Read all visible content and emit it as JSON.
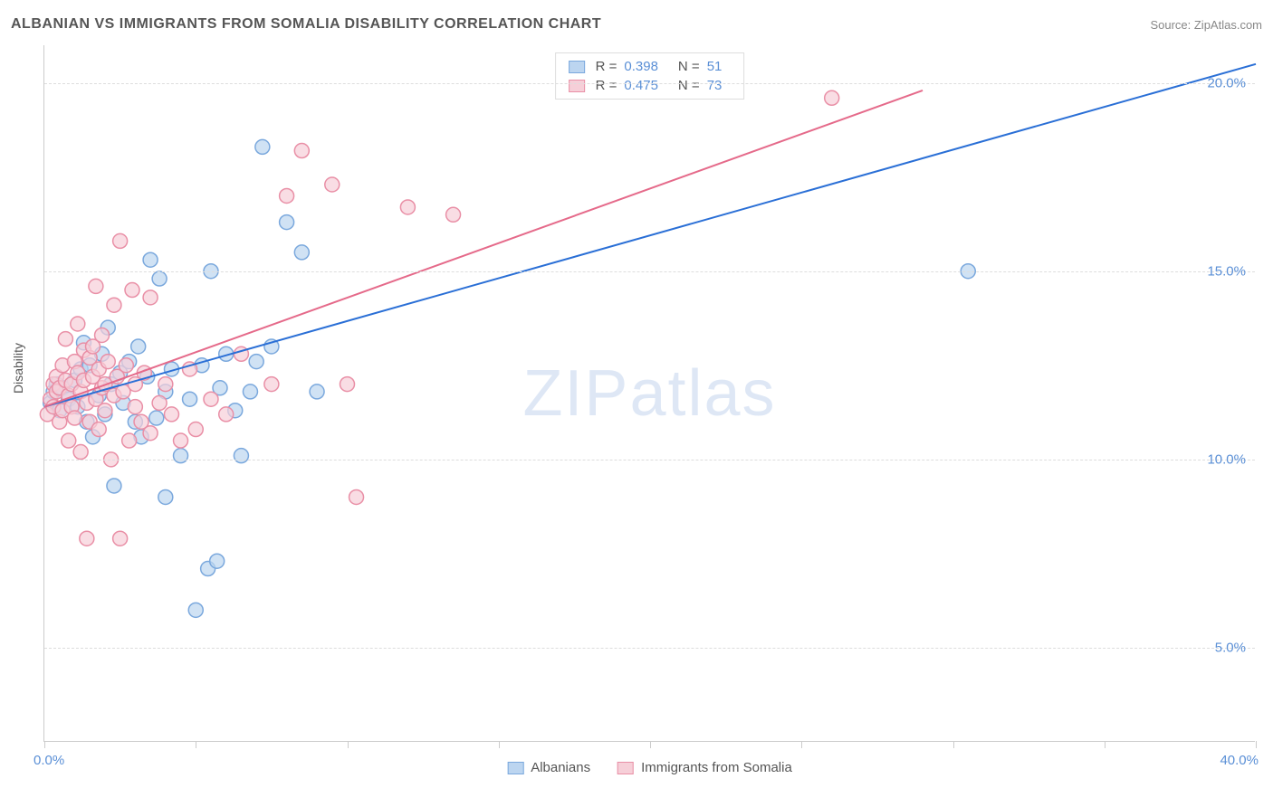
{
  "header": {
    "title": "ALBANIAN VS IMMIGRANTS FROM SOMALIA DISABILITY CORRELATION CHART",
    "source": "Source: ZipAtlas.com"
  },
  "chart": {
    "type": "scatter",
    "ylabel": "Disability",
    "watermark": "ZIPatlas",
    "background_color": "#ffffff",
    "grid_color": "#dddddd",
    "xlim": [
      0,
      40
    ],
    "ylim": [
      2.5,
      21
    ],
    "ytick_labels": [
      "5.0%",
      "10.0%",
      "15.0%",
      "20.0%"
    ],
    "ytick_vals": [
      5,
      10,
      15,
      20
    ],
    "xtick_labels": [
      "0.0%",
      "40.0%"
    ],
    "xtick_label_pos": [
      0,
      40
    ],
    "xtick_vals": [
      0,
      5,
      10,
      15,
      20,
      25,
      30,
      35,
      40
    ],
    "marker_radius": 8,
    "marker_stroke_width": 1.5,
    "series": [
      {
        "name": "Albanians",
        "fill": "#bcd5f0",
        "stroke": "#7aa8dd",
        "line_color": "#2a6fd6",
        "R": "0.398",
        "N": "51",
        "line": {
          "x1": 0,
          "y1": 11.4,
          "x2": 40,
          "y2": 20.5
        },
        "points": [
          [
            0.2,
            11.5
          ],
          [
            0.3,
            11.8
          ],
          [
            0.4,
            12.0
          ],
          [
            0.5,
            11.3
          ],
          [
            0.6,
            11.9
          ],
          [
            0.8,
            11.6
          ],
          [
            1.0,
            12.1
          ],
          [
            1.1,
            11.4
          ],
          [
            1.2,
            12.4
          ],
          [
            1.3,
            13.1
          ],
          [
            1.4,
            11.0
          ],
          [
            1.5,
            12.5
          ],
          [
            1.6,
            10.6
          ],
          [
            1.8,
            11.7
          ],
          [
            1.9,
            12.8
          ],
          [
            2.0,
            11.2
          ],
          [
            2.1,
            13.5
          ],
          [
            2.2,
            12.0
          ],
          [
            2.3,
            9.3
          ],
          [
            2.5,
            12.3
          ],
          [
            2.6,
            11.5
          ],
          [
            2.8,
            12.6
          ],
          [
            3.0,
            11.0
          ],
          [
            3.1,
            13.0
          ],
          [
            3.2,
            10.6
          ],
          [
            3.4,
            12.2
          ],
          [
            3.5,
            15.3
          ],
          [
            3.7,
            11.1
          ],
          [
            3.8,
            14.8
          ],
          [
            4.0,
            9.0
          ],
          [
            4.0,
            11.8
          ],
          [
            4.2,
            12.4
          ],
          [
            4.5,
            10.1
          ],
          [
            4.8,
            11.6
          ],
          [
            5.0,
            6.0
          ],
          [
            5.2,
            12.5
          ],
          [
            5.4,
            7.1
          ],
          [
            5.5,
            15.0
          ],
          [
            5.7,
            7.3
          ],
          [
            5.8,
            11.9
          ],
          [
            6.0,
            12.8
          ],
          [
            6.3,
            11.3
          ],
          [
            6.5,
            10.1
          ],
          [
            6.8,
            11.8
          ],
          [
            7.0,
            12.6
          ],
          [
            7.2,
            18.3
          ],
          [
            7.5,
            13.0
          ],
          [
            8.0,
            16.3
          ],
          [
            8.5,
            15.5
          ],
          [
            9.0,
            11.8
          ],
          [
            30.5,
            15.0
          ]
        ]
      },
      {
        "name": "Immigrants from Somalia",
        "fill": "#f6cfd8",
        "stroke": "#e98fa6",
        "line_color": "#e56a8a",
        "R": "0.475",
        "N": "73",
        "line": {
          "x1": 0,
          "y1": 11.4,
          "x2": 29,
          "y2": 19.8
        },
        "points": [
          [
            0.1,
            11.2
          ],
          [
            0.2,
            11.6
          ],
          [
            0.3,
            12.0
          ],
          [
            0.3,
            11.4
          ],
          [
            0.4,
            11.8
          ],
          [
            0.4,
            12.2
          ],
          [
            0.5,
            11.0
          ],
          [
            0.5,
            11.9
          ],
          [
            0.6,
            12.5
          ],
          [
            0.6,
            11.3
          ],
          [
            0.7,
            12.1
          ],
          [
            0.7,
            13.2
          ],
          [
            0.8,
            11.7
          ],
          [
            0.8,
            10.5
          ],
          [
            0.9,
            12.0
          ],
          [
            0.9,
            11.4
          ],
          [
            1.0,
            12.6
          ],
          [
            1.0,
            11.1
          ],
          [
            1.1,
            12.3
          ],
          [
            1.1,
            13.6
          ],
          [
            1.2,
            11.8
          ],
          [
            1.2,
            10.2
          ],
          [
            1.3,
            12.1
          ],
          [
            1.3,
            12.9
          ],
          [
            1.4,
            11.5
          ],
          [
            1.4,
            7.9
          ],
          [
            1.5,
            12.7
          ],
          [
            1.5,
            11.0
          ],
          [
            1.6,
            12.2
          ],
          [
            1.6,
            13.0
          ],
          [
            1.7,
            11.6
          ],
          [
            1.7,
            14.6
          ],
          [
            1.8,
            12.4
          ],
          [
            1.8,
            10.8
          ],
          [
            1.9,
            11.9
          ],
          [
            1.9,
            13.3
          ],
          [
            2.0,
            12.0
          ],
          [
            2.0,
            11.3
          ],
          [
            2.1,
            12.6
          ],
          [
            2.2,
            10.0
          ],
          [
            2.3,
            11.7
          ],
          [
            2.3,
            14.1
          ],
          [
            2.4,
            12.2
          ],
          [
            2.5,
            7.9
          ],
          [
            2.6,
            11.8
          ],
          [
            2.7,
            12.5
          ],
          [
            2.8,
            10.5
          ],
          [
            2.9,
            14.5
          ],
          [
            3.0,
            11.4
          ],
          [
            3.0,
            12.0
          ],
          [
            3.2,
            11.0
          ],
          [
            3.3,
            12.3
          ],
          [
            3.5,
            10.7
          ],
          [
            3.5,
            14.3
          ],
          [
            3.8,
            11.5
          ],
          [
            4.0,
            12.0
          ],
          [
            4.2,
            11.2
          ],
          [
            4.5,
            10.5
          ],
          [
            4.8,
            12.4
          ],
          [
            5.0,
            10.8
          ],
          [
            5.5,
            11.6
          ],
          [
            6.0,
            11.2
          ],
          [
            6.5,
            12.8
          ],
          [
            7.5,
            12.0
          ],
          [
            8.0,
            17.0
          ],
          [
            8.5,
            18.2
          ],
          [
            9.5,
            17.3
          ],
          [
            10.0,
            12.0
          ],
          [
            10.3,
            9.0
          ],
          [
            12.0,
            16.7
          ],
          [
            13.5,
            16.5
          ],
          [
            26.0,
            19.6
          ],
          [
            2.5,
            15.8
          ]
        ]
      }
    ],
    "legend_top": {
      "r_label": "R =",
      "n_label": "N ="
    },
    "legend_bottom": {
      "label_a": "Albanians",
      "label_b": "Immigrants from Somalia"
    }
  }
}
